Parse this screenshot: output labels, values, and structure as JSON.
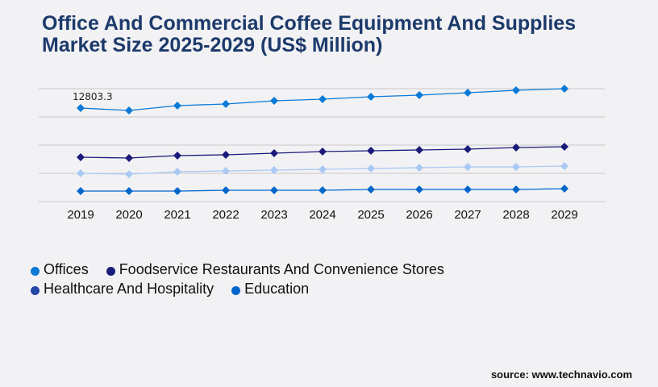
{
  "title": "Office And Commercial Coffee Equipment And Supplies Market Size 2025-2029 (US$ Million)",
  "source": "source: www.technavio.com",
  "chart_data": {
    "type": "line",
    "title": "Office And Commercial Coffee Equipment And Supplies Market Size 2025-2029 (US$ Million)",
    "categories": [
      "2019",
      "2020",
      "2021",
      "2022",
      "2023",
      "2024",
      "2025",
      "2026",
      "2027",
      "2028",
      "2029"
    ],
    "ylim": [
      0,
      15456
    ],
    "grid": true,
    "legend_position": "bottom",
    "annotations": [
      {
        "series": "Offices",
        "category": "2019",
        "label": "12803.3"
      }
    ],
    "series": [
      {
        "name": "Offices",
        "color": "#0a7ad6",
        "line_color": "#0a7ad6",
        "values": [
          12803.3,
          12475,
          13138,
          13358,
          13800,
          14021,
          14352,
          14573,
          14904,
          15235,
          15456
        ]
      },
      {
        "name": "Foodservice Restaurants And Convenience Stores",
        "color": "#1a1a7a",
        "line_color": "#1a1a7a",
        "values": [
          6072,
          5962,
          6293,
          6403,
          6624,
          6845,
          6955,
          7066,
          7176,
          7397,
          7507
        ]
      },
      {
        "name": "Healthcare And Hospitality",
        "color": "#2346a8",
        "line_color": "#a9c9f5",
        "values": [
          3864,
          3754,
          4085,
          4195,
          4306,
          4416,
          4526,
          4637,
          4747,
          4747,
          4858
        ]
      },
      {
        "name": "Education",
        "color": "#0066cc",
        "line_color": "#0066cc",
        "values": [
          1435,
          1435,
          1435,
          1546,
          1546,
          1546,
          1656,
          1656,
          1656,
          1656,
          1766
        ]
      }
    ]
  }
}
